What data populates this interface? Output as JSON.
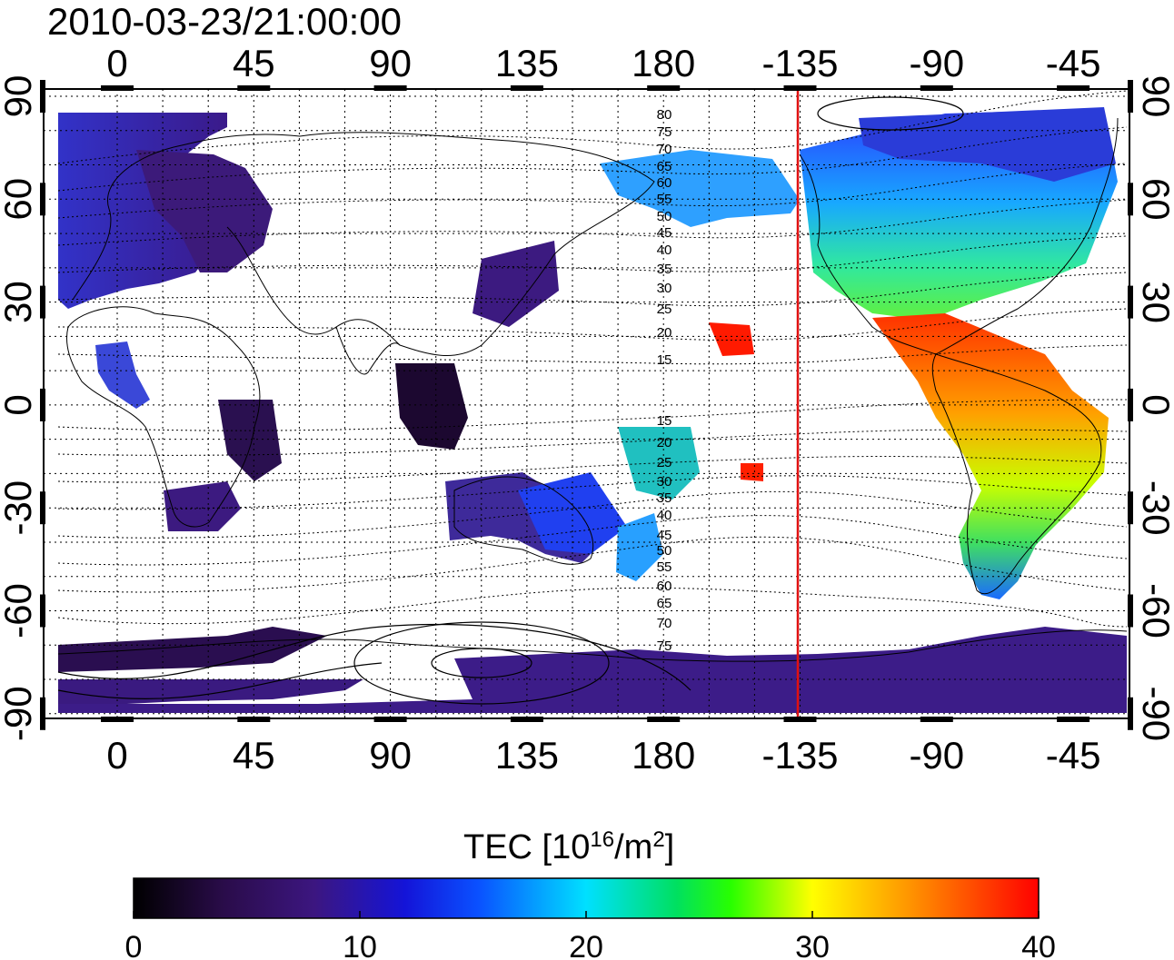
{
  "title": "2010-03-23/21:00:00",
  "map": {
    "lon_ticks_top": [
      "0",
      "45",
      "90",
      "135",
      "180",
      "-135",
      "-90",
      "-45"
    ],
    "lon_ticks_bottom": [
      "0",
      "45",
      "90",
      "135",
      "180",
      "-135",
      "-90",
      "-45"
    ],
    "lat_ticks_left": [
      "90",
      "60",
      "30",
      "0",
      "-30",
      "-60",
      "-90"
    ],
    "lat_ticks_right": [
      "90",
      "60",
      "30",
      "0",
      "-30",
      "-60",
      "-90"
    ],
    "contour_labels": [
      "80",
      "75",
      "70",
      "65",
      "60",
      "55",
      "50",
      "45",
      "40",
      "35",
      "30",
      "25",
      "20",
      "15",
      "15",
      "20",
      "25",
      "30",
      "35",
      "40",
      "45",
      "50",
      "55",
      "60",
      "65",
      "70",
      "75"
    ],
    "terminator_longitude": "-135",
    "terminator_color": "#e01010"
  },
  "colorbar": {
    "title_prefix": "TEC  [10",
    "title_exp1": "16",
    "title_mid": "/m",
    "title_exp2": "2",
    "title_suffix": "]",
    "ticks": [
      "0",
      "10",
      "20",
      "30",
      "40"
    ],
    "min": 0,
    "max": 40,
    "stops": [
      "#000000",
      "#2a0c4a",
      "#3c1680",
      "#1414d8",
      "#0a50ff",
      "#00e0ff",
      "#00e060",
      "#28ff00",
      "#ffff00",
      "#ff9c00",
      "#ff0000"
    ]
  }
}
